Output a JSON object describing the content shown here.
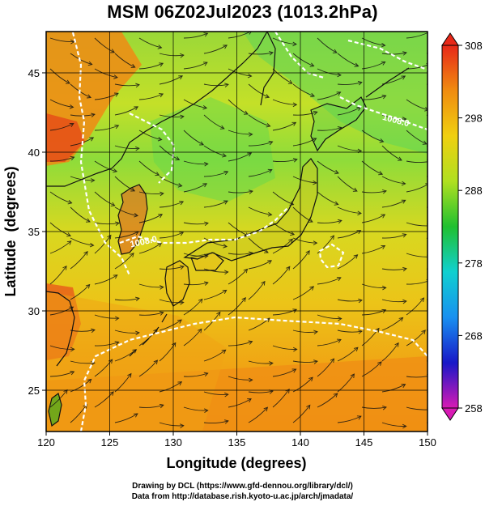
{
  "title": "MSM 06Z02Jul2023 (1013.2hPa)",
  "map": {
    "type": "wind-streamlines-over-temperature",
    "xlabel": "Longitude (degrees)",
    "ylabel": "Latitude  (degrees)",
    "xlim": [
      120,
      150
    ],
    "ylim": [
      22.4,
      47.6
    ],
    "xticks": [
      120,
      125,
      130,
      135,
      140,
      145,
      150
    ],
    "yticks": [
      25,
      30,
      35,
      40,
      45
    ],
    "grid": true,
    "contour_labels": [
      "1008.0",
      "1008.0"
    ],
    "land_color": "#1a1a1a",
    "contour_color": "#ffffff",
    "streamline_color": "#111111"
  },
  "colorbar": {
    "min": 258,
    "max": 308,
    "ticks": [
      308,
      298,
      288,
      278,
      268,
      258
    ],
    "colors": [
      "#d81ab4",
      "#1818c8",
      "#1890f0",
      "#10d0d0",
      "#20c030",
      "#b0e020",
      "#f0d010",
      "#f08c10",
      "#e82818"
    ]
  },
  "credits": {
    "line1": "Drawing by DCL (https://www.gfd-dennou.org/library/dcl/)",
    "line2": "Data from http://database.rish.kyoto-u.ac.jp/arch/jmadata/"
  }
}
